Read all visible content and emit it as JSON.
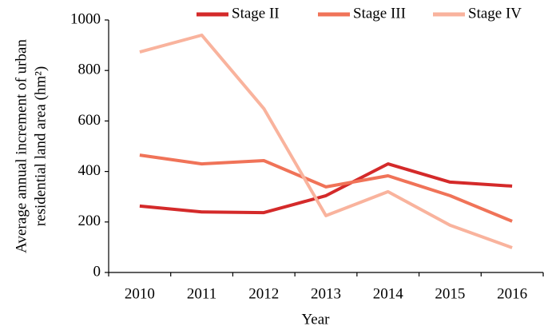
{
  "chart_data": {
    "type": "line",
    "x_label": "Year",
    "y_label_lines": [
      "Average annual increment of urban",
      "residential land area (hm²)"
    ],
    "categories": [
      "2010",
      "2011",
      "2012",
      "2013",
      "2014",
      "2015",
      "2016"
    ],
    "series": [
      {
        "name": "Stage II",
        "color": "#d42a2a",
        "values": [
          263,
          240,
          237,
          304,
          430,
          358,
          342
        ]
      },
      {
        "name": "Stage III",
        "color": "#f07358",
        "values": [
          465,
          430,
          443,
          339,
          383,
          304,
          203
        ]
      },
      {
        "name": "Stage IV",
        "color": "#f9b39d",
        "values": [
          873,
          940,
          649,
          225,
          320,
          187,
          98
        ]
      }
    ],
    "ylim": [
      0,
      1000
    ],
    "yticks": [
      0,
      200,
      400,
      600,
      800,
      1000
    ],
    "grid": false,
    "legend": "top"
  }
}
